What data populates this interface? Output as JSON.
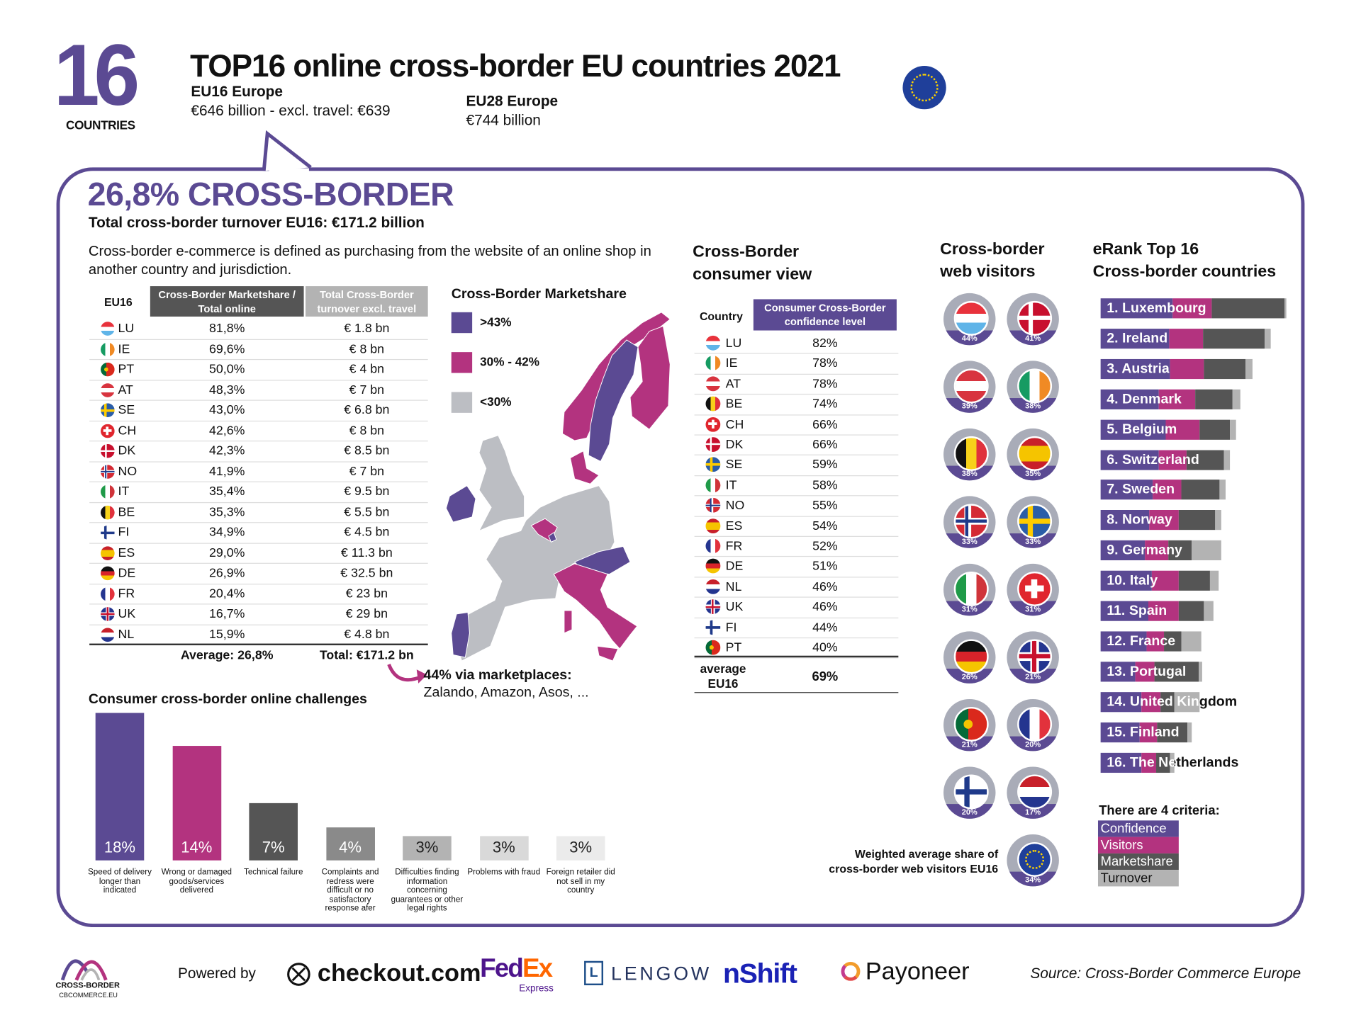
{
  "header": {
    "big_number": "16",
    "big_number_caption": "COUNTRIES",
    "title": "TOP16 online cross-border EU countries 2021",
    "eu16_label": "EU16 Europe",
    "eu16_value": "€646 billion - excl. travel: €639",
    "eu28_label": "EU28 Europe",
    "eu28_value": "€744 billion",
    "flag_icon": "eu-flag-icon"
  },
  "summary": {
    "headline": "26,8% CROSS-BORDER",
    "subheadline": "Total cross-border turnover EU16: €171.2 billion",
    "description": "Cross-border e-commerce is defined as purchasing from the website of an online shop in another country and jurisdiction."
  },
  "marketshare_table": {
    "col0": "EU16",
    "col1": "Cross-Border Marketshare / Total online",
    "col2": "Total Cross-Border turnover excl. travel",
    "rows": [
      {
        "code": "LU",
        "share": "81,8%",
        "turnover": "€ 1.8 bn"
      },
      {
        "code": "IE",
        "share": "69,6%",
        "turnover": "€ 8 bn"
      },
      {
        "code": "PT",
        "share": "50,0%",
        "turnover": "€ 4 bn"
      },
      {
        "code": "AT",
        "share": "48,3%",
        "turnover": "€ 7 bn"
      },
      {
        "code": "SE",
        "share": "43,0%",
        "turnover": "€ 6.8 bn"
      },
      {
        "code": "CH",
        "share": "42,6%",
        "turnover": "€ 8 bn"
      },
      {
        "code": "DK",
        "share": "42,3%",
        "turnover": "€ 8.5 bn"
      },
      {
        "code": "NO",
        "share": "41,9%",
        "turnover": "€ 7 bn"
      },
      {
        "code": "IT",
        "share": "35,4%",
        "turnover": "€ 9.5 bn"
      },
      {
        "code": "BE",
        "share": "35,3%",
        "turnover": "€ 5.5 bn"
      },
      {
        "code": "FI",
        "share": "34,9%",
        "turnover": "€ 4.5 bn"
      },
      {
        "code": "ES",
        "share": "29,0%",
        "turnover": "€ 11.3 bn"
      },
      {
        "code": "DE",
        "share": "26,9%",
        "turnover": "€ 32.5 bn"
      },
      {
        "code": "FR",
        "share": "20,4%",
        "turnover": "€ 23 bn"
      },
      {
        "code": "UK",
        "share": "16,7%",
        "turnover": "€ 29 bn"
      },
      {
        "code": "NL",
        "share": "15,9%",
        "turnover": "€ 4.8 bn"
      }
    ],
    "average": "Average: 26,8%",
    "total": "Total: €171.2 bn"
  },
  "map": {
    "title": "Cross-Border Marketshare",
    "legend": [
      {
        "label": ">43%",
        "color": "#5b4a93"
      },
      {
        "label": "30% - 42%",
        "color": "#b3337f"
      },
      {
        "label": "<30%",
        "color": "#bcbec3"
      }
    ],
    "marketplaces_title": "44% via marketplaces:",
    "marketplaces_list": "Zalando, Amazon, Asos, ..."
  },
  "challenges": {
    "title": "Consumer cross-border online challenges",
    "chart_data": {
      "type": "bar",
      "categories": [
        "Speed of delivery longer than indicated",
        "Wrong or damaged goods/services delivered",
        "Technical failure",
        "Complaints and redress were difficult or no satisfactory response afer",
        "Difficulties finding information concerning guarantees or other legal rights",
        "Problems with fraud",
        "Foreign retailer did not sell in my country"
      ],
      "values": [
        18,
        14,
        7,
        4,
        3,
        3,
        3
      ],
      "labels": [
        "18%",
        "14%",
        "7%",
        "4%",
        "3%",
        "3%",
        "3%"
      ],
      "colors": [
        "#5b4a93",
        "#b3337f",
        "#555555",
        "#8a8a8a",
        "#b3b3b3",
        "#d9d9d9",
        "#ebebeb"
      ],
      "label_colors": [
        "#ffffff",
        "#ffffff",
        "#ffffff",
        "#ffffff",
        "#222222",
        "#222222",
        "#222222"
      ],
      "ylim": [
        0,
        18
      ]
    }
  },
  "consumer_view": {
    "title_line1": "Cross-Border",
    "title_line2": "consumer view",
    "col0": "Country",
    "col1": "Consumer Cross-Border confidence level",
    "rows": [
      {
        "code": "LU",
        "value": "82%"
      },
      {
        "code": "IE",
        "value": "78%"
      },
      {
        "code": "AT",
        "value": "78%"
      },
      {
        "code": "BE",
        "value": "74%"
      },
      {
        "code": "CH",
        "value": "66%"
      },
      {
        "code": "DK",
        "value": "66%"
      },
      {
        "code": "SE",
        "value": "59%"
      },
      {
        "code": "IT",
        "value": "58%"
      },
      {
        "code": "NO",
        "value": "55%"
      },
      {
        "code": "ES",
        "value": "54%"
      },
      {
        "code": "FR",
        "value": "52%"
      },
      {
        "code": "DE",
        "value": "51%"
      },
      {
        "code": "NL",
        "value": "46%"
      },
      {
        "code": "UK",
        "value": "46%"
      },
      {
        "code": "FI",
        "value": "44%"
      },
      {
        "code": "PT",
        "value": "40%"
      }
    ],
    "average_label_line1": "average",
    "average_label_line2": "EU16",
    "average_value": "69%"
  },
  "web_visitors": {
    "title_line1": "Cross-border",
    "title_line2": "web visitors",
    "items": [
      {
        "code": "LU",
        "value": "44%"
      },
      {
        "code": "DK",
        "value": "41%"
      },
      {
        "code": "AT",
        "value": "39%"
      },
      {
        "code": "IE",
        "value": "38%"
      },
      {
        "code": "BE",
        "value": "38%"
      },
      {
        "code": "ES",
        "value": "35%"
      },
      {
        "code": "NO",
        "value": "33%"
      },
      {
        "code": "SE",
        "value": "33%"
      },
      {
        "code": "IT",
        "value": "31%"
      },
      {
        "code": "CH",
        "value": "31%"
      },
      {
        "code": "DE",
        "value": "26%"
      },
      {
        "code": "UK",
        "value": "21%"
      },
      {
        "code": "PT",
        "value": "21%"
      },
      {
        "code": "FR",
        "value": "20%"
      },
      {
        "code": "FI",
        "value": "20%"
      },
      {
        "code": "NL",
        "value": "17%"
      }
    ],
    "average_caption_line1": "Weighted average share of",
    "average_caption_line2": "cross-border web visitors EU16",
    "average_value": "34%"
  },
  "erank": {
    "title_line1": "eRank Top 16",
    "title_line2": "Cross-border countries",
    "segment_colors": [
      "#5b4a93",
      "#b3337f",
      "#555555",
      "#b3b3b3"
    ],
    "rows": [
      {
        "label": "1. Luxembourg",
        "scores": [
          102,
          55,
          102,
          3
        ]
      },
      {
        "label": "2. Ireland",
        "scores": [
          97,
          47,
          87,
          9
        ]
      },
      {
        "label": "3. Austria",
        "scores": [
          98,
          48,
          59,
          9
        ]
      },
      {
        "label": "4. Denmark",
        "scores": [
          82,
          52,
          52,
          11
        ]
      },
      {
        "label": "5. Belgium",
        "scores": [
          92,
          48,
          43,
          8
        ]
      },
      {
        "label": "6. Switzerland",
        "scores": [
          82,
          39,
          53,
          9
        ]
      },
      {
        "label": "7. Sweden",
        "scores": [
          73,
          41,
          54,
          8
        ]
      },
      {
        "label": "8. Norway",
        "scores": [
          68,
          42,
          52,
          8
        ]
      },
      {
        "label": "9. Germany",
        "scores": [
          63,
          32,
          34,
          41
        ]
      },
      {
        "label": "10. Italy",
        "scores": [
          72,
          38,
          44,
          12
        ]
      },
      {
        "label": "11. Spain",
        "scores": [
          67,
          43,
          36,
          13
        ]
      },
      {
        "label": "12. France",
        "scores": [
          65,
          25,
          24,
          28
        ]
      },
      {
        "label": "13. Portugal",
        "scores": [
          49,
          27,
          62,
          5
        ]
      },
      {
        "label": "14. United Kingdom",
        "scores": [
          57,
          27,
          20,
          36
        ]
      },
      {
        "label": "15. Finland",
        "scores": [
          55,
          25,
          43,
          6
        ]
      },
      {
        "label": "16. The Netherlands",
        "scores": [
          57,
          21,
          20,
          6
        ]
      }
    ],
    "criteria_title": "There are 4 criteria:",
    "criteria": [
      {
        "label": "Confidence",
        "bg": "#5b4a93",
        "fg": "#ffffff"
      },
      {
        "label": "Visitors",
        "bg": "#b3337f",
        "fg": "#ffffff"
      },
      {
        "label": "Marketshare",
        "bg": "#555555",
        "fg": "#ffffff"
      },
      {
        "label": "Turnover",
        "bg": "#b3b3b3",
        "fg": "#111111"
      }
    ]
  },
  "footer": {
    "logo_text": "CROSS-BORDER",
    "logo_sub": "CBCOMMERCE.EU",
    "powered_by": "Powered by",
    "sponsors": {
      "checkout": "checkout.com",
      "fedex_fed": "Fed",
      "fedex_ex": "Ex",
      "fedex_sub": "Express",
      "lengow": "LENGOW",
      "nshift": "nShift",
      "payoneer": "Payoneer"
    },
    "source": "Source: Cross-Border Commerce Europe"
  },
  "colors": {
    "purple": "#5b4a93",
    "magenta": "#b3337f",
    "grey": "#bcbec3",
    "dark": "#555555"
  }
}
